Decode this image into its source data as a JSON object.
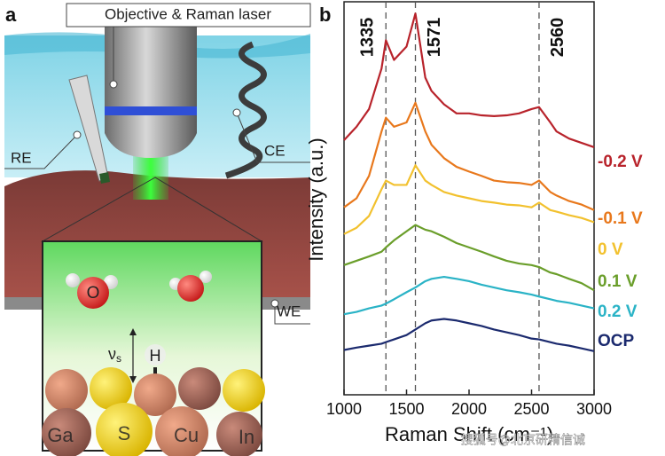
{
  "panel_a": {
    "label": "a",
    "objective_callout": "Objective & Raman laser",
    "reference_electrode": "RE",
    "counter_electrode": "CE",
    "working_electrode": "WE",
    "inset": {
      "oxygen": "O",
      "vibration_symbol": "ν",
      "vibration_subscript": "s",
      "hydrogen": "H",
      "atoms": [
        "Ga",
        "S",
        "Cu",
        "In"
      ]
    }
  },
  "chart_data": {
    "type": "line",
    "panel_label": "b",
    "x_label": "Raman Shift (cm⁻¹)",
    "y_label": "Intensity (a.u.)",
    "xlim": [
      1000,
      3000
    ],
    "xticks": [
      1000,
      1500,
      2000,
      2500,
      3000
    ],
    "ylim": [
      0,
      100
    ],
    "peaks": [
      1335,
      1571,
      2560
    ],
    "x": [
      1000,
      1100,
      1200,
      1300,
      1335,
      1400,
      1500,
      1571,
      1650,
      1700,
      1800,
      1900,
      2000,
      2100,
      2200,
      2300,
      2400,
      2500,
      2560,
      2650,
      2700,
      2800,
      2900,
      3000
    ],
    "series": [
      {
        "name": "-0.2 V",
        "color": "#b8232b",
        "values": [
          64.8,
          68.2,
          72.7,
          83.0,
          90.2,
          85.2,
          88.6,
          97.0,
          80.7,
          77.3,
          73.9,
          71.6,
          71.6,
          71.1,
          70.9,
          71.1,
          71.6,
          72.7,
          73.2,
          69.3,
          67.0,
          65.2,
          64.1,
          63.0
        ]
      },
      {
        "name": "-0.1 V",
        "color": "#e8781c",
        "values": [
          47.7,
          50.0,
          55.7,
          67.0,
          70.5,
          68.2,
          69.3,
          74.3,
          67.0,
          63.6,
          60.2,
          58.0,
          56.8,
          55.7,
          54.5,
          54.1,
          53.9,
          53.4,
          54.5,
          51.6,
          50.7,
          49.3,
          48.4,
          47.0
        ]
      },
      {
        "name": "0 V",
        "color": "#f2c12e",
        "values": [
          40.9,
          42.5,
          45.5,
          52.3,
          54.5,
          53.4,
          53.4,
          58.4,
          54.5,
          53.4,
          51.6,
          50.7,
          50.0,
          49.3,
          48.9,
          48.4,
          48.2,
          47.7,
          48.9,
          47.0,
          46.6,
          45.7,
          45.0,
          43.9
        ]
      },
      {
        "name": "0.1 V",
        "color": "#6a9e2a",
        "values": [
          33.0,
          34.1,
          35.2,
          36.4,
          37.5,
          39.3,
          41.6,
          43.2,
          42.0,
          41.6,
          40.2,
          38.6,
          37.5,
          36.4,
          35.2,
          34.1,
          33.4,
          33.0,
          32.5,
          31.1,
          30.7,
          29.5,
          28.4,
          26.6
        ]
      },
      {
        "name": "0.2 V",
        "color": "#2ab3c6",
        "values": [
          20.5,
          21.1,
          22.0,
          22.7,
          23.2,
          24.3,
          26.1,
          27.3,
          28.9,
          29.5,
          30.0,
          29.5,
          28.9,
          28.0,
          27.3,
          26.6,
          26.1,
          25.5,
          25.0,
          24.3,
          23.9,
          23.4,
          22.7,
          22.0
        ]
      },
      {
        "name": "OCP",
        "color": "#1b2a6e",
        "values": [
          11.4,
          12.0,
          12.5,
          13.0,
          13.4,
          14.1,
          15.2,
          16.6,
          18.2,
          18.9,
          19.3,
          18.9,
          18.2,
          17.5,
          16.6,
          15.9,
          15.2,
          14.3,
          14.1,
          13.4,
          13.0,
          12.5,
          11.8,
          11.1
        ]
      }
    ],
    "watermark": "搜狐号@北京研精信诚"
  }
}
